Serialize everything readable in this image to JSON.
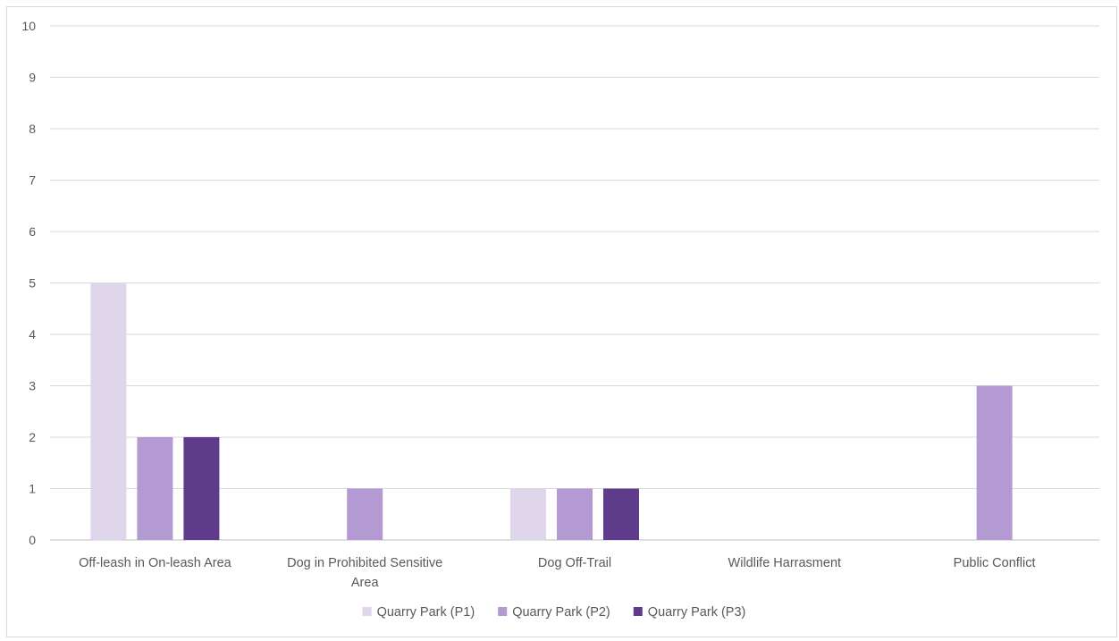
{
  "chart_data": {
    "type": "bar",
    "title": "",
    "xlabel": "",
    "ylabel": "",
    "ylim": [
      0,
      10
    ],
    "yticks": [
      "0",
      "1",
      "2",
      "3",
      "4",
      "5",
      "6",
      "7",
      "8",
      "9",
      "10"
    ],
    "grid": true,
    "legend_position": "bottom",
    "categories": [
      [
        "Off-leash in On-leash Area"
      ],
      [
        "Dog in Prohibited Sensitive",
        "Area"
      ],
      [
        "Dog Off-Trail"
      ],
      [
        "Wildlife Harrasment"
      ],
      [
        "Public Conflict"
      ]
    ],
    "series": [
      {
        "name": "Quarry Park (P1)",
        "color": "#e0d6ec",
        "values": [
          5,
          0,
          1,
          0,
          0
        ]
      },
      {
        "name": "Quarry Park (P2)",
        "color": "#b39ad3",
        "values": [
          2,
          1,
          1,
          0,
          3
        ]
      },
      {
        "name": "Quarry Park (P3)",
        "color": "#5f3c8b",
        "values": [
          2,
          0,
          1,
          0,
          0
        ]
      }
    ]
  }
}
